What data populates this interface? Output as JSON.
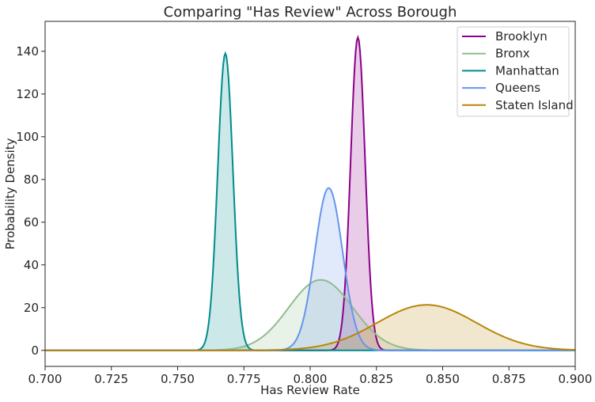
{
  "chart_data": {
    "type": "area",
    "title": "Comparing \"Has Review\" Across Borough",
    "xlabel": "Has Review Rate",
    "ylabel": "Probability Density",
    "xlim": [
      0.7,
      0.9
    ],
    "ylim": [
      -7.5,
      154
    ],
    "x_ticks": [
      "0.700",
      "0.725",
      "0.750",
      "0.775",
      "0.800",
      "0.825",
      "0.850",
      "0.875",
      "0.900"
    ],
    "y_ticks": [
      "0",
      "20",
      "40",
      "60",
      "80",
      "100",
      "120",
      "140"
    ],
    "legend_position": "top-right",
    "grid": false,
    "series": [
      {
        "name": "Brooklyn",
        "color": "#8B008B",
        "mean": 0.818,
        "sd": 0.00273,
        "peak": 146.5
      },
      {
        "name": "Bronx",
        "color": "#8FBC8F",
        "mean": 0.804,
        "sd": 0.0121,
        "peak": 33
      },
      {
        "name": "Manhattan",
        "color": "#008B8B",
        "mean": 0.768,
        "sd": 0.00287,
        "peak": 139
      },
      {
        "name": "Queens",
        "color": "#6495ED",
        "mean": 0.807,
        "sd": 0.00525,
        "peak": 76
      },
      {
        "name": "Staten Island",
        "color": "#B8860B",
        "mean": 0.844,
        "sd": 0.0187,
        "peak": 21.3
      }
    ]
  }
}
